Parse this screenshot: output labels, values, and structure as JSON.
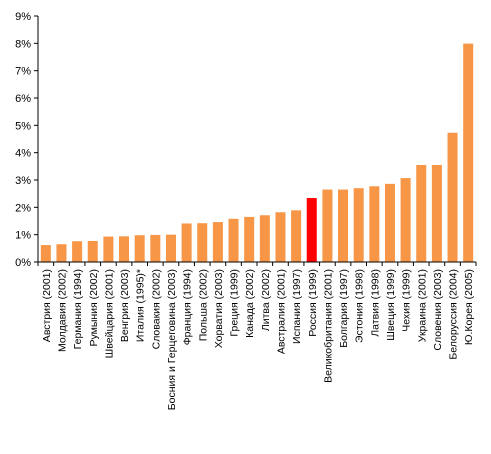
{
  "chart_data": {
    "type": "bar",
    "title": "",
    "xlabel": "",
    "ylabel": "",
    "ylim": [
      0,
      9
    ],
    "y_ticks": [
      "0%",
      "1%",
      "2%",
      "3%",
      "4%",
      "5%",
      "6%",
      "7%",
      "8%",
      "9%"
    ],
    "grid": false,
    "legend": "none",
    "bar_color": "#f79646",
    "highlight_color": "#ff0000",
    "highlight_index": 17,
    "categories": [
      "Австрия (2001)",
      "Молдавия (2002)",
      "Германия (1994)",
      "Румыния (2002)",
      "Швейцария (2001)",
      "Венгрия (2003)",
      "Италия (1995)*",
      "Словакия (2002)",
      "Босния и Герцеговина (2003)",
      "Франция (1994)",
      "Польша (2002)",
      "Хорватия (2003)",
      "Греция (1999)",
      "Канада (2002)",
      "Литва (2002)",
      "Австралия (2001)",
      "Испания (1997)",
      "Россия (1999)",
      "Великобритания (2001)",
      "Болгария (1997)",
      "Эстония (1998)",
      "Латвия (1998)",
      "Швеция (1999)",
      "Чехия (1999)",
      "Украина (2001)",
      "Словения (2003)",
      "Белоруссия (2004)",
      "Ю.Корея (2005)"
    ],
    "values": [
      0.62,
      0.65,
      0.76,
      0.77,
      0.93,
      0.94,
      0.98,
      0.99,
      1.0,
      1.41,
      1.42,
      1.46,
      1.58,
      1.65,
      1.71,
      1.82,
      1.89,
      2.34,
      2.65,
      2.65,
      2.7,
      2.77,
      2.86,
      3.07,
      3.55,
      3.55,
      4.73,
      7.99
    ]
  }
}
